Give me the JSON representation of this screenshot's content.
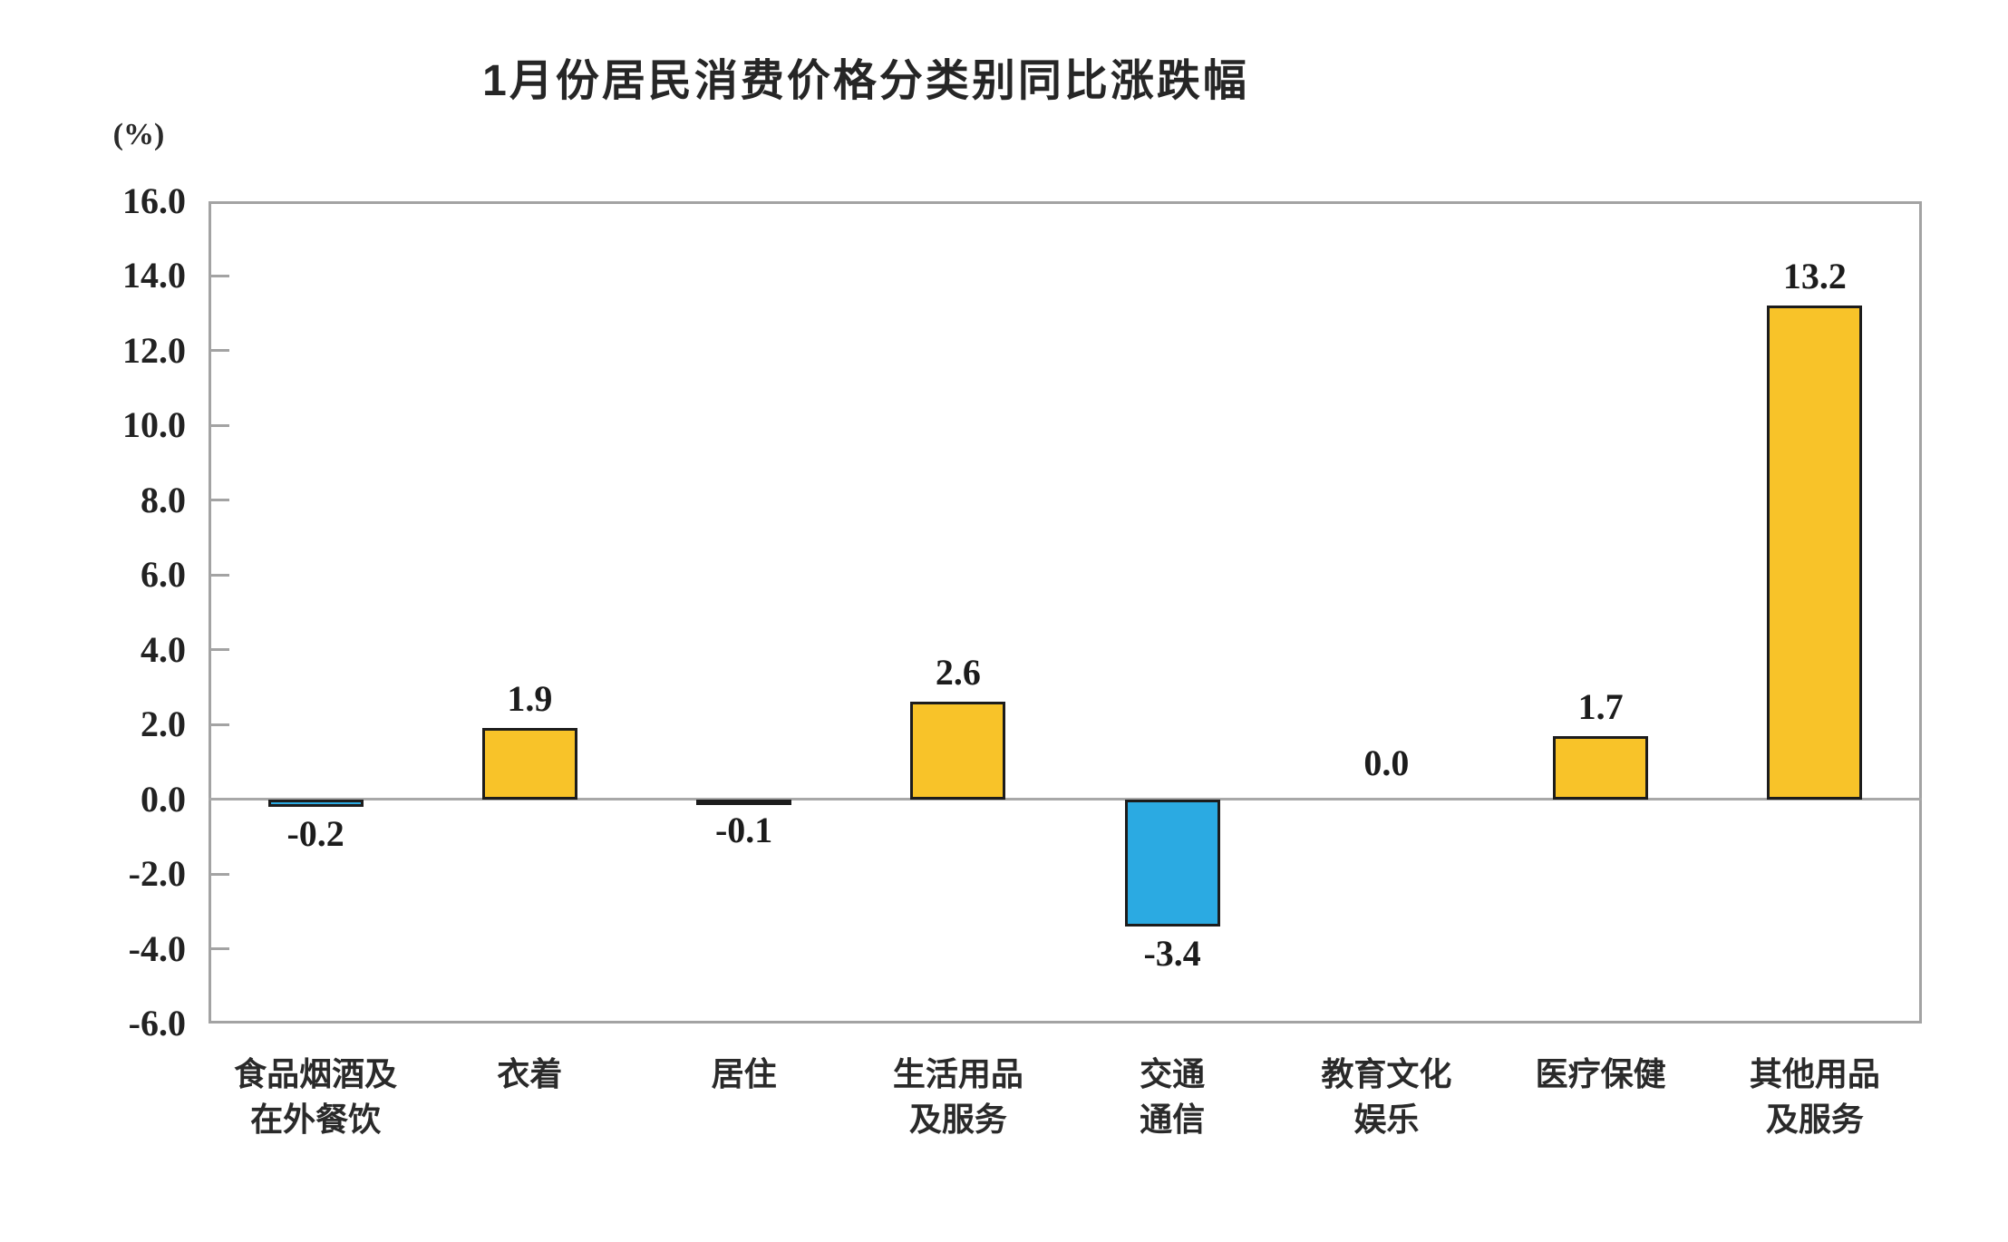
{
  "chart_data": {
    "type": "bar",
    "title": "1月份居民消费价格分类别同比涨跌幅",
    "unit_label": "(%)",
    "categories": [
      "食品烟酒及在外餐饮",
      "衣着",
      "居住",
      "生活用品及服务",
      "交通通信",
      "教育文化娱乐",
      "医疗保健",
      "其他用品及服务"
    ],
    "category_label_lines": [
      [
        "食品烟酒及",
        "在外餐饮"
      ],
      [
        "衣着"
      ],
      [
        "居住"
      ],
      [
        "生活用品",
        "及服务"
      ],
      [
        "交通",
        "通信"
      ],
      [
        "教育文化",
        "娱乐"
      ],
      [
        "医疗保健"
      ],
      [
        "其他用品",
        "及服务"
      ]
    ],
    "values": [
      -0.2,
      1.9,
      -0.1,
      2.6,
      -3.4,
      0.0,
      1.7,
      13.2
    ],
    "value_labels": [
      "-0.2",
      "1.9",
      "-0.1",
      "2.6",
      "-3.4",
      "0.0",
      "1.7",
      "13.2"
    ],
    "ylabel": "",
    "xlabel": "",
    "ylim": [
      -6.0,
      16.0
    ],
    "ytick_step": 2.0,
    "ytick_labels": [
      "16.0",
      "14.0",
      "12.0",
      "10.0",
      "8.0",
      "6.0",
      "4.0",
      "2.0",
      "0.0",
      "-2.0",
      "-4.0",
      "-6.0"
    ],
    "grid": "off",
    "legend": "none",
    "colors": {
      "positive_bar": "#F8C329",
      "negative_bar": "#2BAAE2",
      "bar_border": "#1C1C1C",
      "axis_frame": "#A3A3A3",
      "text": "#1F1F1F"
    }
  }
}
